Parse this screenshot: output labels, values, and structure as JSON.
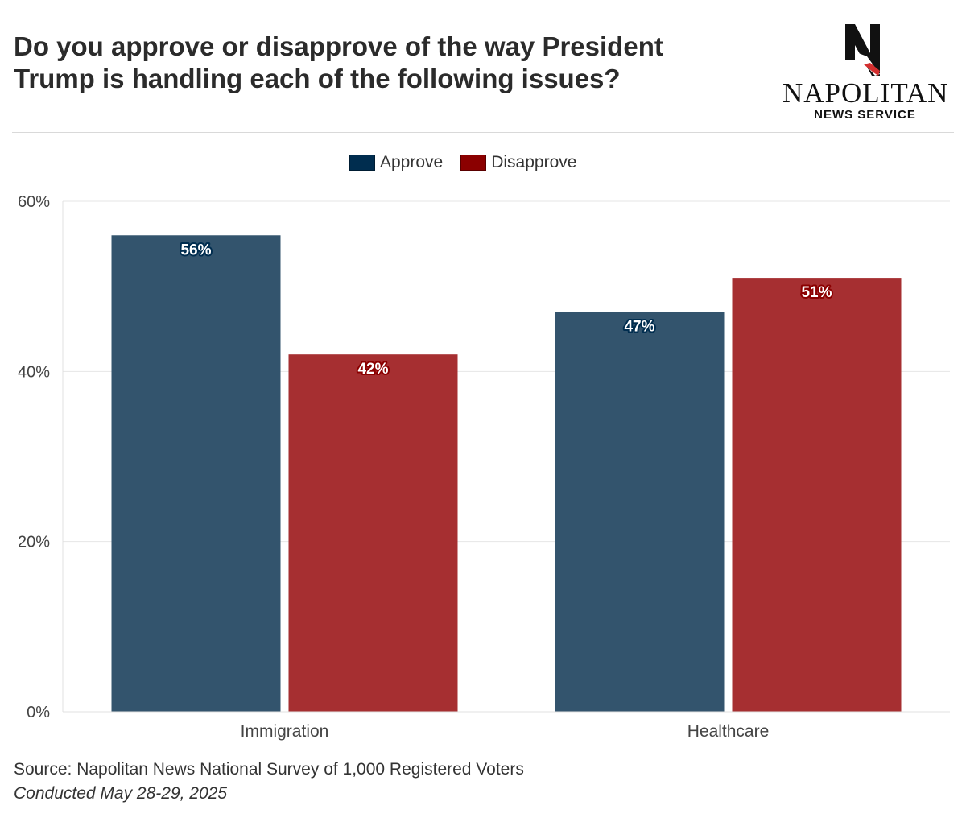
{
  "header": {
    "title_line1": "Do you approve or disapprove of the way President",
    "title_line2": "Trump is handling each of the following issues?"
  },
  "logo": {
    "name": "NAPOLITAN",
    "subtitle": "NEWS SERVICE",
    "icon": "eagle-n-logo-icon"
  },
  "colors": {
    "approve": "#002d4f",
    "disapprove": "#8b0000",
    "approve_bar": "#33546d",
    "disapprove_bar": "#a62f31"
  },
  "footer": {
    "source": "Source: Napolitan News National Survey of 1,000 Registered Voters",
    "conducted": "Conducted May 28-29, 2025"
  },
  "chart_data": {
    "type": "bar",
    "title": "Do you approve or disapprove of the way President Trump is handling each of the following issues?",
    "categories": [
      "Immigration",
      "Healthcare"
    ],
    "series": [
      {
        "name": "Approve",
        "values": [
          56,
          47
        ],
        "labels": [
          "56%",
          "47%"
        ]
      },
      {
        "name": "Disapprove",
        "values": [
          42,
          51
        ],
        "labels": [
          "42%",
          "51%"
        ]
      }
    ],
    "ylim": [
      0,
      60
    ],
    "yticks": [
      0,
      20,
      40,
      60
    ],
    "ytick_labels": [
      "0%",
      "20%",
      "40%",
      "60%"
    ],
    "grid": true,
    "legend_position": "top-center",
    "xlabel": "",
    "ylabel": ""
  }
}
